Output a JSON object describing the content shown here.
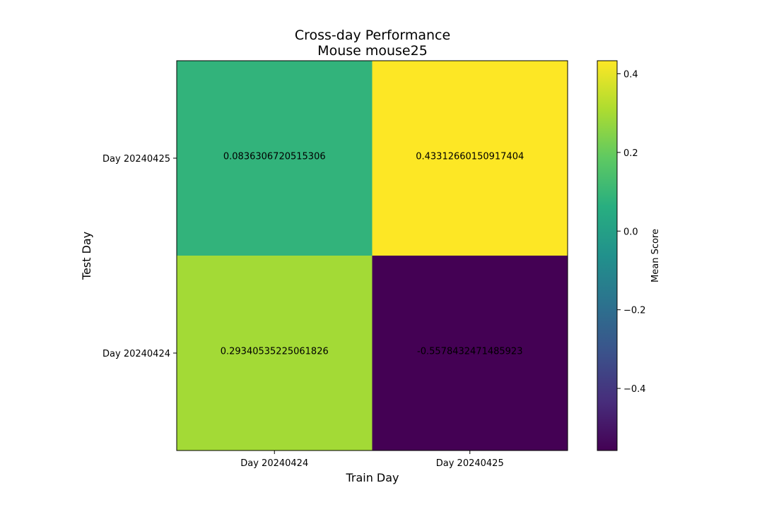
{
  "chart_data": {
    "type": "heatmap",
    "title": "Cross-day Performance",
    "subtitle": "Mouse mouse25",
    "xlabel": "Train Day",
    "ylabel": "Test Day",
    "x_categories": [
      "Day 20240424",
      "Day 20240425"
    ],
    "y_categories": [
      "Day 20240425",
      "Day 20240424"
    ],
    "values": [
      [
        0.0836306720515306,
        0.43312660150917404
      ],
      [
        0.29340535225061826,
        -0.5578432471485923
      ]
    ],
    "cell_labels": [
      [
        "0.0836306720515306",
        "0.43312660150917404"
      ],
      [
        "0.29340535225061826",
        "-0.5578432471485923"
      ]
    ],
    "colorbar": {
      "label": "Mean Score",
      "range": [
        -0.5578432471485923,
        0.43312660150917404
      ],
      "ticks": [
        -0.4,
        -0.2,
        0.0,
        0.2,
        0.4
      ],
      "tick_labels": [
        "−0.4",
        "−0.2",
        "0.0",
        "0.2",
        "0.4"
      ],
      "colormap": "viridis"
    },
    "grid": false
  }
}
